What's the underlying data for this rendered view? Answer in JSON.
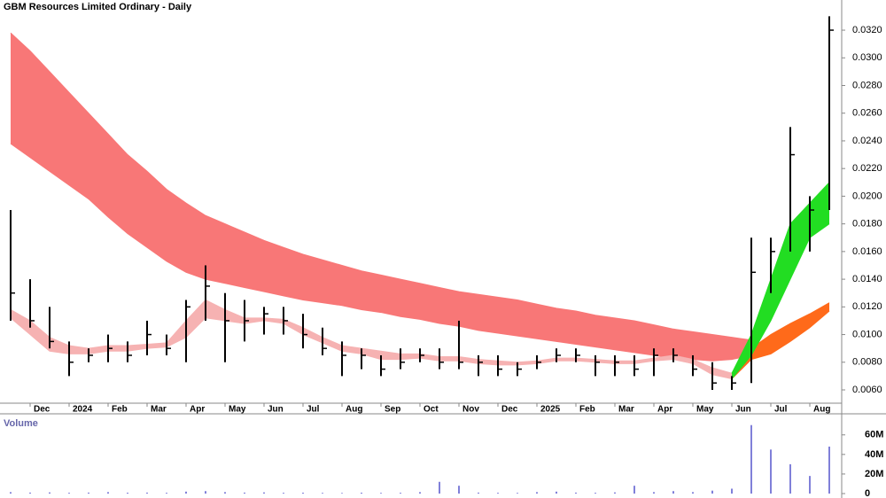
{
  "chart_data": {
    "type": "ohlc",
    "title": "GBM Resources Limited Ordinary - Daily",
    "categories": [
      null,
      "Dec",
      null,
      "2024",
      null,
      "Feb",
      null,
      "Mar",
      null,
      "Apr",
      null,
      "May",
      null,
      "Jun",
      null,
      "Jul",
      null,
      "Aug",
      null,
      "Sep",
      null,
      "Oct",
      null,
      "Nov",
      null,
      "Dec",
      null,
      "2025",
      null,
      "Feb",
      null,
      "Mar",
      null,
      "Apr",
      null,
      "May",
      null,
      "Jun",
      null,
      "Jul",
      null,
      "Aug",
      null
    ],
    "high": [
      0.019,
      0.014,
      0.012,
      0.0095,
      0.009,
      0.01,
      0.0095,
      0.011,
      0.01,
      0.0125,
      0.015,
      0.013,
      0.0125,
      0.012,
      0.012,
      0.0115,
      0.0105,
      0.0095,
      0.009,
      0.0085,
      0.009,
      0.009,
      0.009,
      0.011,
      0.0085,
      0.0085,
      0.008,
      0.0085,
      0.009,
      0.009,
      0.0085,
      0.0085,
      0.0085,
      0.009,
      0.009,
      0.0085,
      0.008,
      0.007,
      0.017,
      0.017,
      0.025,
      0.02,
      0.033
    ],
    "low": [
      0.011,
      0.0105,
      0.009,
      0.007,
      0.008,
      0.008,
      0.008,
      0.0085,
      0.0085,
      0.008,
      0.011,
      0.008,
      0.0095,
      0.01,
      0.01,
      0.009,
      0.0085,
      0.007,
      0.0075,
      0.007,
      0.0075,
      0.008,
      0.0075,
      0.0075,
      0.007,
      0.007,
      0.007,
      0.0075,
      0.008,
      0.008,
      0.007,
      0.007,
      0.007,
      0.007,
      0.008,
      0.007,
      0.006,
      0.006,
      0.0065,
      0.013,
      0.016,
      0.016,
      0.019
    ],
    "close": [
      0.013,
      0.011,
      0.0095,
      0.008,
      0.0085,
      0.009,
      0.0085,
      0.01,
      0.009,
      0.012,
      0.0135,
      0.011,
      0.011,
      0.0115,
      0.011,
      0.01,
      0.009,
      0.0085,
      0.0085,
      0.0075,
      0.008,
      0.0085,
      0.008,
      0.008,
      0.008,
      0.0075,
      0.0075,
      0.008,
      0.0085,
      0.0085,
      0.008,
      0.008,
      0.0075,
      0.0085,
      0.0085,
      0.0075,
      0.0065,
      0.0065,
      0.0145,
      0.016,
      0.023,
      0.019,
      0.032
    ],
    "color": "#000000",
    "bands": [
      {
        "color": "#f87777",
        "upper": [
          0.0318,
          0.0305,
          0.029,
          0.0275,
          0.026,
          0.0245,
          0.023,
          0.0218,
          0.0205,
          0.0195,
          0.0186,
          0.018,
          0.0174,
          0.0168,
          0.0163,
          0.0158,
          0.0154,
          0.015,
          0.0146,
          0.0143,
          0.014,
          0.0137,
          0.0134,
          0.0131,
          0.0129,
          0.0127,
          0.0125,
          0.0122,
          0.0119,
          0.0117,
          0.0114,
          0.0112,
          0.011,
          0.0107,
          0.0104,
          0.0102,
          0.01,
          0.0098,
          0.0096,
          null,
          null,
          null,
          null
        ],
        "lower": [
          0.0238,
          0.0228,
          0.0218,
          0.0208,
          0.0198,
          0.0185,
          0.0173,
          0.0163,
          0.0153,
          0.0145,
          0.014,
          0.0137,
          0.0134,
          0.0131,
          0.0128,
          0.0125,
          0.0123,
          0.0121,
          0.0118,
          0.0116,
          0.0113,
          0.0111,
          0.0108,
          0.0106,
          0.0103,
          0.0101,
          0.0099,
          0.0097,
          0.0095,
          0.0093,
          0.0091,
          0.0089,
          0.0087,
          0.0085,
          0.0083,
          0.0082,
          0.0081,
          0.0082,
          0.0085,
          null,
          null,
          null,
          null
        ]
      },
      {
        "color": "#f6b2b2",
        "upper": [
          0.0118,
          0.011,
          0.0098,
          0.0092,
          0.009,
          0.0092,
          0.0092,
          0.0093,
          0.0094,
          0.011,
          0.0125,
          0.0118,
          0.0112,
          0.0112,
          0.0111,
          0.0105,
          0.0098,
          0.0092,
          0.009,
          0.0088,
          0.0086,
          0.0086,
          0.0084,
          0.0084,
          0.0082,
          0.0081,
          0.008,
          0.0081,
          0.0083,
          0.0083,
          0.0082,
          0.0081,
          0.0081,
          0.0083,
          0.0085,
          0.0082,
          0.0076,
          0.0072,
          null,
          null,
          null,
          null,
          null
        ],
        "lower": [
          0.0112,
          0.01,
          0.0088,
          0.0086,
          0.0086,
          0.0088,
          0.0088,
          0.009,
          0.0091,
          0.0098,
          0.0112,
          0.011,
          0.0108,
          0.011,
          0.0108,
          0.01,
          0.0094,
          0.0088,
          0.0086,
          0.0082,
          0.0082,
          0.0083,
          0.0081,
          0.0081,
          0.0079,
          0.0078,
          0.0078,
          0.0079,
          0.0081,
          0.0081,
          0.008,
          0.0079,
          0.0079,
          0.0081,
          0.0082,
          0.0079,
          0.0071,
          0.0068,
          null,
          null,
          null,
          null,
          null
        ]
      },
      {
        "color": "#ff6a1a",
        "upper": [
          null,
          null,
          null,
          null,
          null,
          null,
          null,
          null,
          null,
          null,
          null,
          null,
          null,
          null,
          null,
          null,
          null,
          null,
          null,
          null,
          null,
          null,
          null,
          null,
          null,
          null,
          null,
          null,
          null,
          null,
          null,
          null,
          null,
          null,
          null,
          null,
          null,
          0.0072,
          0.009,
          0.01,
          0.0108,
          0.0115,
          0.0123
        ],
        "lower": [
          null,
          null,
          null,
          null,
          null,
          null,
          null,
          null,
          null,
          null,
          null,
          null,
          null,
          null,
          null,
          null,
          null,
          null,
          null,
          null,
          null,
          null,
          null,
          null,
          null,
          null,
          null,
          null,
          null,
          null,
          null,
          null,
          null,
          null,
          null,
          null,
          null,
          0.0068,
          0.0082,
          0.0086,
          0.0095,
          0.0105,
          0.0117
        ]
      },
      {
        "color": "#22dd22",
        "upper": [
          null,
          null,
          null,
          null,
          null,
          null,
          null,
          null,
          null,
          null,
          null,
          null,
          null,
          null,
          null,
          null,
          null,
          null,
          null,
          null,
          null,
          null,
          null,
          null,
          null,
          null,
          null,
          null,
          null,
          null,
          null,
          null,
          null,
          null,
          null,
          null,
          null,
          0.0072,
          0.01,
          0.014,
          0.018,
          0.0195,
          0.021
        ],
        "lower": [
          null,
          null,
          null,
          null,
          null,
          null,
          null,
          null,
          null,
          null,
          null,
          null,
          null,
          null,
          null,
          null,
          null,
          null,
          null,
          null,
          null,
          null,
          null,
          null,
          null,
          null,
          null,
          null,
          null,
          null,
          null,
          null,
          null,
          null,
          null,
          null,
          null,
          0.0068,
          0.0085,
          0.011,
          0.014,
          0.017,
          0.018
        ]
      }
    ],
    "ylim": [
      0.00504,
      0.03418
    ],
    "yticks": [
      {
        "value": 0.006,
        "label": "0.0060"
      },
      {
        "value": 0.008,
        "label": "0.0080"
      },
      {
        "value": 0.01,
        "label": "0.0100"
      },
      {
        "value": 0.012,
        "label": "0.0120"
      },
      {
        "value": 0.014,
        "label": "0.0140"
      },
      {
        "value": 0.016,
        "label": "0.0160"
      },
      {
        "value": 0.018,
        "label": "0.0180"
      },
      {
        "value": 0.02,
        "label": "0.0200"
      },
      {
        "value": 0.022,
        "label": "0.0220"
      },
      {
        "value": 0.024,
        "label": "0.0240"
      },
      {
        "value": 0.026,
        "label": "0.0260"
      },
      {
        "value": 0.028,
        "label": "0.0280"
      },
      {
        "value": 0.03,
        "label": "0.0300"
      },
      {
        "value": 0.032,
        "label": "0.0320"
      }
    ],
    "volume": {
      "label": "Volume",
      "color": "#5555cc",
      "values": [
        1500000,
        1000000,
        1200000,
        800000,
        1000000,
        1500000,
        900000,
        1000000,
        800000,
        2000000,
        2500000,
        1500000,
        1000000,
        1200000,
        800000,
        900000,
        700000,
        600000,
        900000,
        700000,
        800000,
        1500000,
        12000000,
        8000000,
        1000000,
        800000,
        700000,
        1500000,
        2000000,
        1000000,
        800000,
        1200000,
        8000000,
        1500000,
        2500000,
        1500000,
        3000000,
        5000000,
        70000000,
        45000000,
        30000000,
        18000000,
        48000000
      ],
      "ylim": [
        0,
        77000000
      ],
      "yticks": [
        {
          "value": 0,
          "label": "0"
        },
        {
          "value": 20000000,
          "label": "20M"
        },
        {
          "value": 40000000,
          "label": "40M"
        },
        {
          "value": 60000000,
          "label": "60M"
        }
      ]
    }
  }
}
